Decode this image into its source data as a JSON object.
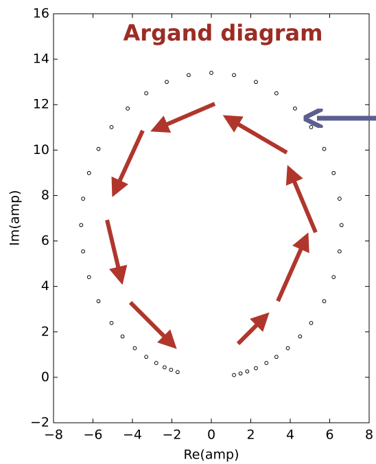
{
  "chart_data": {
    "type": "scatter",
    "title": "Argand diagram",
    "x_label": "Re(amp)",
    "y_label": "Im(amp)",
    "x": [
      1.15,
      1.48,
      1.82,
      2.26,
      2.79,
      3.3,
      3.88,
      4.5,
      5.06,
      5.72,
      6.2,
      6.5,
      6.6,
      6.5,
      6.2,
      5.72,
      5.06,
      4.24,
      3.3,
      2.26,
      1.15,
      0,
      -1.15,
      -2.26,
      -3.3,
      -4.24,
      -5.06,
      -5.72,
      -6.2,
      -6.5,
      -6.6,
      -6.5,
      -6.2,
      -5.72,
      -5.06,
      -4.5,
      -3.88,
      -3.3,
      -2.79,
      -2.37,
      -2.04,
      -1.71
    ],
    "series": [
      {
        "color": "#000000",
        "values": [
          0.1,
          0.17,
          0.26,
          0.4,
          0.63,
          0.9,
          1.28,
          1.8,
          2.39,
          3.35,
          4.41,
          5.54,
          6.7,
          7.86,
          8.99,
          10.05,
          11.01,
          11.83,
          12.5,
          13.0,
          13.3,
          13.4,
          13.3,
          13.0,
          12.5,
          11.83,
          11.01,
          10.05,
          8.99,
          7.86,
          6.7,
          5.54,
          4.41,
          3.35,
          2.39,
          1.8,
          1.28,
          0.9,
          0.63,
          0.44,
          0.33,
          0.23
        ]
      }
    ],
    "xlim": [
      -8,
      8
    ],
    "ylim": [
      -2,
      16
    ],
    "xticks": [
      {
        "value": -8,
        "label": "−8"
      },
      {
        "value": -6,
        "label": "−6"
      },
      {
        "value": -4,
        "label": "−4"
      },
      {
        "value": -2,
        "label": "−2"
      },
      0,
      2,
      4,
      6,
      8
    ],
    "yticks": [
      {
        "value": -2,
        "label": "−2"
      },
      0,
      2,
      4,
      6,
      8,
      10,
      12,
      14,
      16
    ],
    "grid": false,
    "title_color": "#9b2d25"
  }
}
